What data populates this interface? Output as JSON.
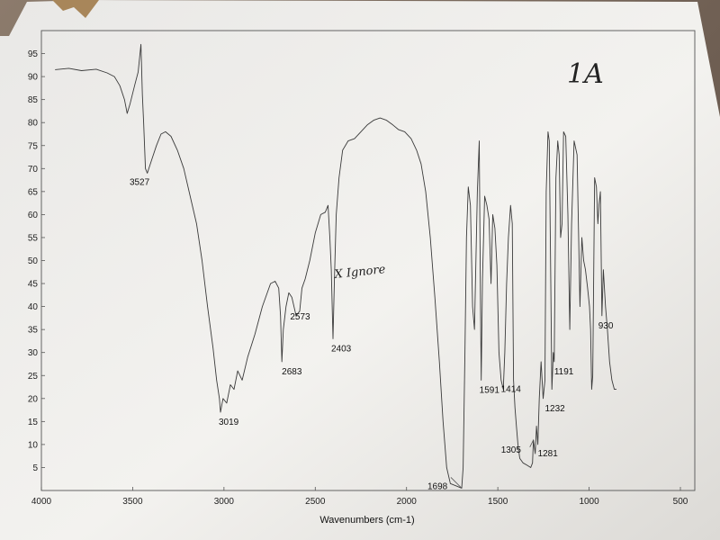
{
  "chart_data": {
    "type": "line",
    "title": "",
    "xlabel": "Wavenumbers (cm-1)",
    "ylabel": "",
    "xlim": [
      4000,
      500
    ],
    "ylim": [
      0,
      100
    ],
    "x_ticks": [
      4000,
      3500,
      3000,
      2500,
      2000,
      1500,
      1000,
      500
    ],
    "y_ticks": [
      5,
      10,
      15,
      20,
      25,
      30,
      35,
      40,
      45,
      50,
      55,
      60,
      65,
      70,
      75,
      80,
      85,
      90,
      95
    ],
    "grid": false,
    "series": [
      {
        "color": "#3a3a3a",
        "points": [
          [
            3925,
            91.5
          ],
          [
            3850,
            91.8
          ],
          [
            3780,
            91.3
          ],
          [
            3700,
            91.6
          ],
          [
            3640,
            90.8
          ],
          [
            3600,
            90
          ],
          [
            3570,
            88
          ],
          [
            3545,
            85
          ],
          [
            3530,
            82
          ],
          [
            3515,
            84
          ],
          [
            3490,
            88
          ],
          [
            3470,
            91
          ],
          [
            3455,
            97
          ],
          [
            3447,
            86
          ],
          [
            3440,
            80
          ],
          [
            3430,
            70
          ],
          [
            3420,
            69
          ],
          [
            3395,
            72
          ],
          [
            3370,
            75
          ],
          [
            3345,
            77.5
          ],
          [
            3320,
            78
          ],
          [
            3290,
            77
          ],
          [
            3255,
            74
          ],
          [
            3220,
            70
          ],
          [
            3185,
            64
          ],
          [
            3150,
            58
          ],
          [
            3120,
            50
          ],
          [
            3090,
            40
          ],
          [
            3060,
            31
          ],
          [
            3040,
            24
          ],
          [
            3025,
            20
          ],
          [
            3019,
            17
          ],
          [
            3005,
            20
          ],
          [
            2985,
            19
          ],
          [
            2965,
            23
          ],
          [
            2945,
            22
          ],
          [
            2925,
            26
          ],
          [
            2900,
            24
          ],
          [
            2870,
            29
          ],
          [
            2830,
            34
          ],
          [
            2790,
            40
          ],
          [
            2745,
            45
          ],
          [
            2720,
            45.5
          ],
          [
            2700,
            44
          ],
          [
            2690,
            38
          ],
          [
            2683,
            28
          ],
          [
            2675,
            35
          ],
          [
            2660,
            40
          ],
          [
            2645,
            43
          ],
          [
            2628,
            42
          ],
          [
            2605,
            38
          ],
          [
            2585,
            39
          ],
          [
            2573,
            44
          ],
          [
            2555,
            46
          ],
          [
            2530,
            50
          ],
          [
            2500,
            56
          ],
          [
            2470,
            60
          ],
          [
            2445,
            60.5
          ],
          [
            2430,
            62
          ],
          [
            2420,
            55
          ],
          [
            2412,
            48
          ],
          [
            2403,
            33
          ],
          [
            2395,
            46
          ],
          [
            2385,
            60
          ],
          [
            2370,
            68
          ],
          [
            2350,
            74
          ],
          [
            2320,
            76
          ],
          [
            2285,
            76.5
          ],
          [
            2250,
            78
          ],
          [
            2215,
            79.5
          ],
          [
            2180,
            80.5
          ],
          [
            2145,
            81
          ],
          [
            2110,
            80.5
          ],
          [
            2075,
            79.5
          ],
          [
            2045,
            78.5
          ],
          [
            2010,
            78
          ],
          [
            1975,
            76.5
          ],
          [
            1945,
            74
          ],
          [
            1920,
            71
          ],
          [
            1895,
            65
          ],
          [
            1870,
            55
          ],
          [
            1845,
            42
          ],
          [
            1820,
            28
          ],
          [
            1800,
            15
          ],
          [
            1780,
            5
          ],
          [
            1760,
            1.5
          ],
          [
            1698,
            0.5
          ],
          [
            1690,
            5
          ],
          [
            1680,
            30
          ],
          [
            1672,
            55
          ],
          [
            1662,
            66
          ],
          [
            1650,
            62
          ],
          [
            1638,
            40
          ],
          [
            1628,
            35
          ],
          [
            1620,
            50
          ],
          [
            1612,
            65
          ],
          [
            1602,
            76
          ],
          [
            1595,
            40
          ],
          [
            1591,
            24
          ],
          [
            1584,
            46
          ],
          [
            1572,
            64
          ],
          [
            1560,
            62
          ],
          [
            1548,
            59
          ],
          [
            1537,
            45
          ],
          [
            1528,
            60
          ],
          [
            1516,
            57
          ],
          [
            1505,
            49
          ],
          [
            1494,
            30
          ],
          [
            1482,
            24
          ],
          [
            1470,
            22
          ],
          [
            1462,
            30
          ],
          [
            1452,
            45
          ],
          [
            1442,
            55
          ],
          [
            1430,
            62
          ],
          [
            1421,
            58
          ],
          [
            1414,
            24
          ],
          [
            1406,
            18
          ],
          [
            1398,
            14
          ],
          [
            1390,
            10
          ],
          [
            1380,
            7
          ],
          [
            1362,
            6
          ],
          [
            1340,
            5.5
          ],
          [
            1320,
            5
          ],
          [
            1310,
            6
          ],
          [
            1305,
            11
          ],
          [
            1295,
            8
          ],
          [
            1288,
            14
          ],
          [
            1281,
            10
          ],
          [
            1273,
            20
          ],
          [
            1263,
            28
          ],
          [
            1252,
            20
          ],
          [
            1242,
            24
          ],
          [
            1235,
            65
          ],
          [
            1225,
            78
          ],
          [
            1218,
            76
          ],
          [
            1210,
            45
          ],
          [
            1204,
            22
          ],
          [
            1196,
            30
          ],
          [
            1191,
            28
          ],
          [
            1182,
            68
          ],
          [
            1172,
            76
          ],
          [
            1164,
            73
          ],
          [
            1156,
            55
          ],
          [
            1148,
            58
          ],
          [
            1140,
            78
          ],
          [
            1128,
            77
          ],
          [
            1116,
            60
          ],
          [
            1106,
            35
          ],
          [
            1096,
            58
          ],
          [
            1082,
            76
          ],
          [
            1066,
            73
          ],
          [
            1050,
            40
          ],
          [
            1040,
            55
          ],
          [
            1030,
            50
          ],
          [
            1020,
            48
          ],
          [
            1008,
            44
          ],
          [
            998,
            40
          ],
          [
            992,
            35
          ],
          [
            986,
            22
          ],
          [
            980,
            25
          ],
          [
            970,
            68
          ],
          [
            960,
            66
          ],
          [
            952,
            58
          ],
          [
            946,
            62
          ],
          [
            938,
            65
          ],
          [
            930,
            38
          ],
          [
            922,
            48
          ],
          [
            910,
            40
          ],
          [
            900,
            35
          ],
          [
            888,
            28
          ],
          [
            875,
            24
          ],
          [
            862,
            22
          ],
          [
            850,
            22
          ]
        ]
      }
    ],
    "peak_labels": [
      {
        "text": "3527",
        "x": 3527,
        "y": 69
      },
      {
        "text": "3019",
        "x": 3019,
        "y": 17
      },
      {
        "text": "2683",
        "x": 2683,
        "y": 28
      },
      {
        "text": "2573",
        "x": 2573,
        "y": 38
      },
      {
        "text": "2403",
        "x": 2403,
        "y": 33
      },
      {
        "text": "1698",
        "x": 1698,
        "y": 0.5
      },
      {
        "text": "1591",
        "x": 1591,
        "y": 24
      },
      {
        "text": "1414",
        "x": 1414,
        "y": 24
      },
      {
        "text": "1305",
        "x": 1305,
        "y": 11
      },
      {
        "text": "1281",
        "x": 1281,
        "y": 10
      },
      {
        "text": "1232",
        "x": 1232,
        "y": 20
      },
      {
        "text": "1191",
        "x": 1191,
        "y": 28
      },
      {
        "text": "930",
        "x": 930,
        "y": 38
      }
    ]
  },
  "annotations": {
    "sample_id": "1A",
    "ignore_note": "X Ignore"
  }
}
